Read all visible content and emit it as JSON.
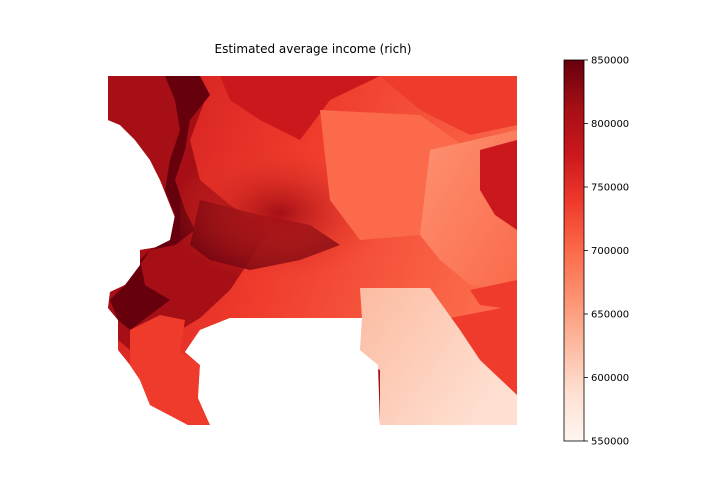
{
  "chart_data": {
    "type": "heatmap",
    "title": "Estimated average income (rich)",
    "colormap": "Reds",
    "colorbar": {
      "min": 550000,
      "max": 850000,
      "ticks": [
        850000,
        800000,
        750000,
        700000,
        650000,
        600000,
        550000
      ],
      "tick_labels": [
        "850000",
        "800000",
        "750000",
        "700000",
        "650000",
        "600000",
        "550000"
      ]
    },
    "xlabel": "",
    "ylabel": "",
    "axes_visible": false,
    "colors": {
      "darkest": "#67000d",
      "dark": "#a50f15",
      "mid_dark": "#cb181d",
      "mid": "#ef3b2c",
      "mid_light": "#fb6a4a",
      "light": "#fc9272",
      "lighter": "#fcbba1",
      "lightest": "#fee0d2",
      "white": "#fff5f0"
    }
  }
}
